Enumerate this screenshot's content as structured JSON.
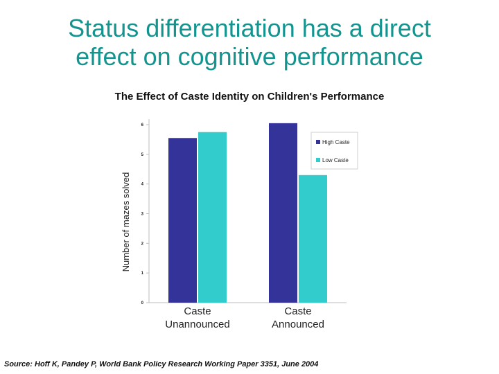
{
  "slide": {
    "title_line1": "Status differentiation has a direct",
    "title_line2": "effect on cognitive performance",
    "source": "Source:  Hoff K, Pandey P, World Bank Policy Research Working Paper 3351, June 2004"
  },
  "chart_data": {
    "type": "bar",
    "title": "The Effect of Caste Identity on Children's Performance",
    "xlabel": "",
    "ylabel": "Number of mazes solved",
    "categories": [
      [
        "Caste",
        "Unannounced"
      ],
      [
        "Caste",
        "Announced"
      ]
    ],
    "series": [
      {
        "name": "High Caste",
        "values": [
          5.55,
          6.05
        ]
      },
      {
        "name": "Low Caste",
        "values": [
          5.75,
          4.3
        ]
      }
    ],
    "ylim": [
      0,
      6
    ],
    "yticks": [
      0,
      1,
      2,
      3,
      4,
      5,
      6
    ],
    "grid": false,
    "legend": "right",
    "colors": {
      "High Caste": "#333399",
      "Low Caste": "#33cccc",
      "axis": "#bdbdbd"
    }
  }
}
